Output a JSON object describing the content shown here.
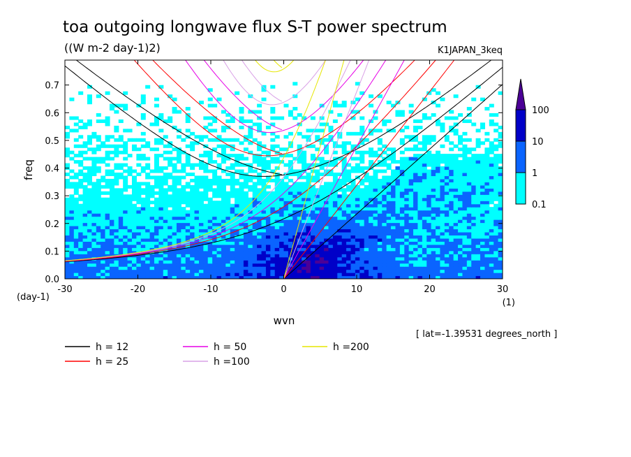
{
  "title": "toa outgoing longwave flux S-T power spectrum",
  "units": "((W m-2 day-1)2)",
  "experiment": "K1JAPAN_3keq",
  "latitude_note": "[ lat=-1.39531 degrees_north ]",
  "chart_data": {
    "type": "heatmap",
    "xlabel": "wvn",
    "ylabel": "freq",
    "x_unit": "(1)",
    "y_unit": "(day-1)",
    "xlim": [
      -30,
      30
    ],
    "ylim": [
      0,
      0.79
    ],
    "x_ticks": [
      "-30",
      "-20",
      "-10",
      "0",
      "10",
      "20",
      "30"
    ],
    "y_ticks": [
      "0.0",
      "0.1",
      "0.2",
      "0.3",
      "0.4",
      "0.5",
      "0.6",
      "0.7"
    ],
    "colorbar": {
      "levels": [
        "0.1",
        "1",
        "10",
        "100"
      ],
      "colors": {
        "below_0.1": "#ffffff",
        "0.1-1": "#00ffff",
        "1-10": "#0a64ff",
        "10-100": "#0000c8",
        "above_100": "#4b0096"
      }
    },
    "dispersion_curves": [
      {
        "name": "h = 12",
        "equivalent_depth": 12,
        "color": "#000000"
      },
      {
        "name": "h = 25",
        "equivalent_depth": 25,
        "color": "#ff0000"
      },
      {
        "name": "h = 50",
        "equivalent_depth": 50,
        "color": "#e600e6"
      },
      {
        "name": "h =100",
        "equivalent_depth": 100,
        "color": "#d9a0e6"
      },
      {
        "name": "h =200",
        "equivalent_depth": 200,
        "color": "#e6e600"
      }
    ]
  }
}
